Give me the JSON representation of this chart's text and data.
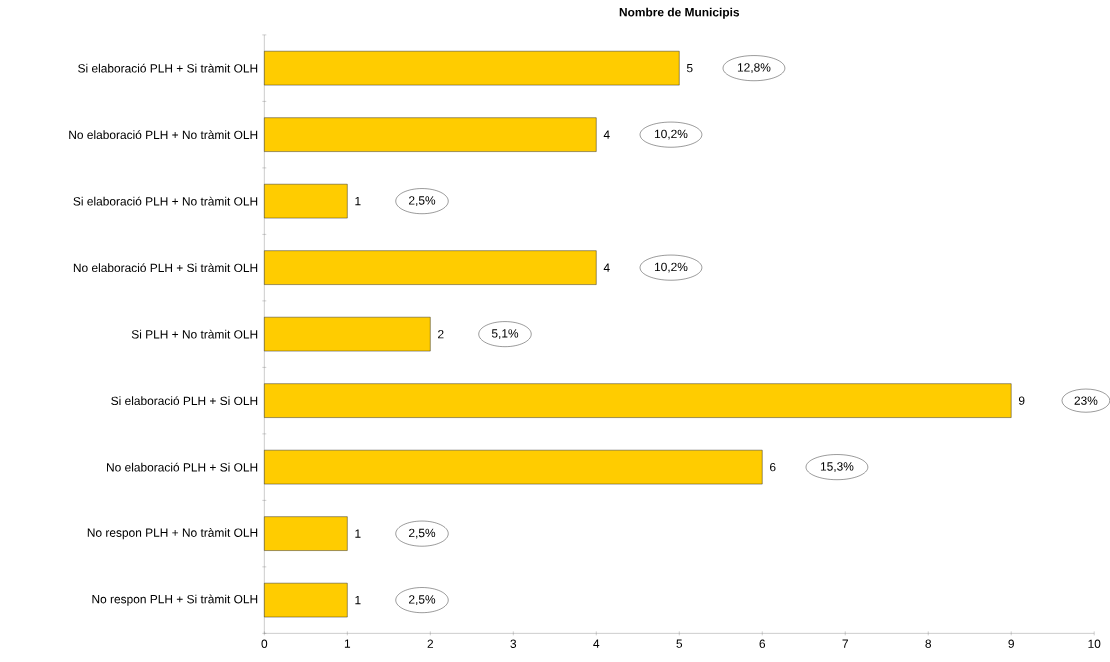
{
  "chart_data": {
    "type": "bar",
    "orientation": "horizontal",
    "title": "Nombre de Municipis",
    "categories": [
      "Si elaboració PLH + Si tràmit OLH",
      "No elaboració PLH + No tràmit OLH",
      "Si elaboració PLH + No tràmit OLH",
      "No elaboració PLH + Si tràmit OLH",
      "Si PLH + No tràmit OLH",
      "Si elaboració PLH + Si OLH",
      "No elaboració PLH + Si OLH",
      "No respon PLH + No tràmit OLH",
      "No respon PLH + Si tràmit OLH"
    ],
    "values": [
      5,
      4,
      1,
      4,
      2,
      9,
      6,
      1,
      1
    ],
    "color": "#ffcc00",
    "xlim": [
      0,
      10
    ],
    "xticks": [
      0,
      1,
      2,
      3,
      4,
      5,
      6,
      7,
      8,
      9,
      10
    ],
    "data_labels": true,
    "annotations": [
      "12,8%",
      "10,2%",
      "2,5%",
      "10,2%",
      "5,1%",
      "23%",
      "15,3%",
      "2,5%",
      "2,5%"
    ]
  }
}
